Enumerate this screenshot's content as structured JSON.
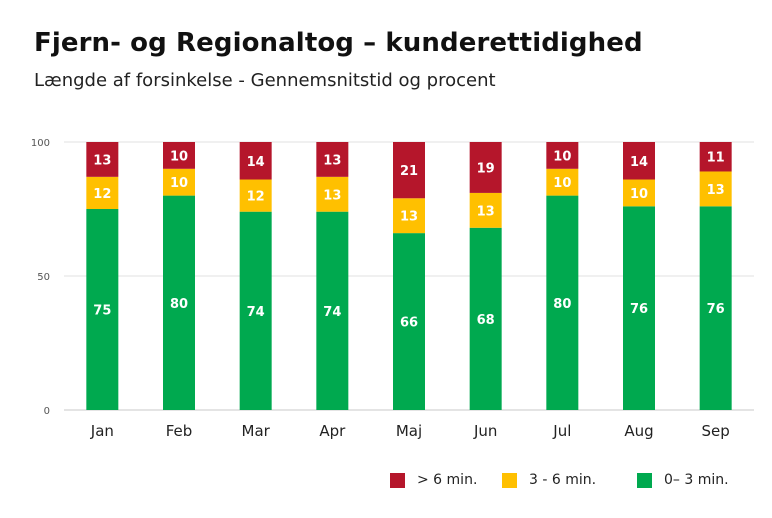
{
  "chart_data": {
    "type": "bar",
    "stacked": true,
    "title": "Fjern- og Regionaltog – kunderettidighed",
    "subtitle": "Længde af forsinkelse - Gennemsnitstid og procent",
    "xlabel": "",
    "ylabel": "",
    "ylim": [
      0,
      100
    ],
    "yticks": [
      0,
      50,
      100
    ],
    "categories": [
      "Jan",
      "Feb",
      "Mar",
      "Apr",
      "Maj",
      "Jun",
      "Jul",
      "Aug",
      "Sep"
    ],
    "series": [
      {
        "name": "0– 3 min.",
        "color": "#00a94f",
        "values": [
          75,
          80,
          74,
          74,
          66,
          68,
          80,
          76,
          76
        ]
      },
      {
        "name": "3 - 6 min.",
        "color": "#ffc000",
        "values": [
          12,
          10,
          12,
          13,
          13,
          13,
          10,
          10,
          13
        ]
      },
      {
        "name": "> 6 min.",
        "color": "#b5162b",
        "values": [
          13,
          10,
          14,
          13,
          21,
          19,
          10,
          14,
          11
        ]
      }
    ],
    "legend": {
      "placement": "bottom-right",
      "order": [
        "> 6 min.",
        "3 - 6 min.",
        "0– 3 min."
      ]
    }
  }
}
